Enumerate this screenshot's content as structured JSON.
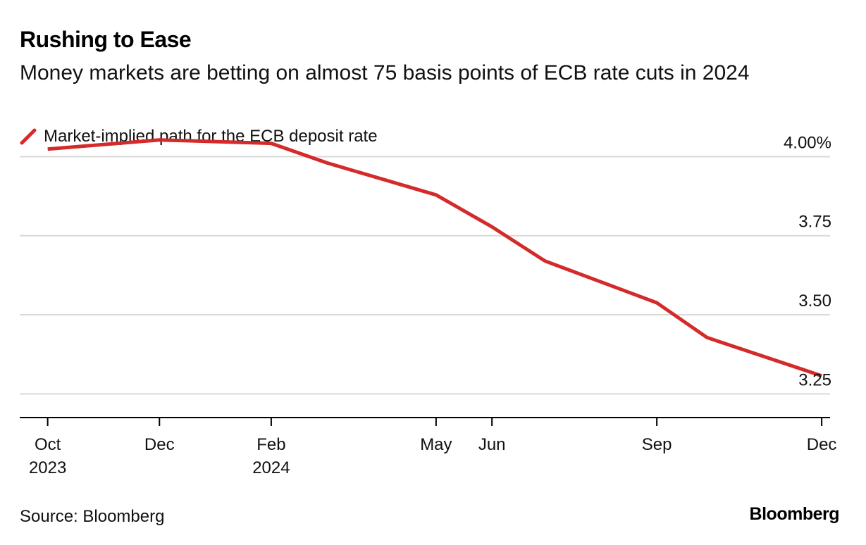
{
  "title": "Rushing to Ease",
  "subtitle": "Money markets are betting on almost 75 basis points of ECB rate cuts in 2024",
  "source": "Source: Bloomberg",
  "brand": "Bloomberg",
  "colors": {
    "line": "#d42a2a",
    "grid": "#d9d9d9",
    "axis": "#000000"
  },
  "chart_data": {
    "type": "line",
    "title": "Rushing to Ease",
    "xlabel": "",
    "ylabel": "",
    "legend": "top-left",
    "ylim": [
      3.175,
      4.05
    ],
    "xlim": [
      0,
      14.5
    ],
    "yticks": [
      {
        "value": 4.0,
        "label": "4.00%"
      },
      {
        "value": 3.75,
        "label": "3.75"
      },
      {
        "value": 3.5,
        "label": "3.50"
      },
      {
        "value": 3.25,
        "label": "3.25"
      }
    ],
    "xticks": [
      {
        "value": 0.5,
        "label": "Oct",
        "sublabel": "2023"
      },
      {
        "value": 2.5,
        "label": "Dec",
        "sublabel": ""
      },
      {
        "value": 4.5,
        "label": "Feb",
        "sublabel": "2024"
      },
      {
        "value": 7.45,
        "label": "May",
        "sublabel": ""
      },
      {
        "value": 8.45,
        "label": "Jun",
        "sublabel": ""
      },
      {
        "value": 11.4,
        "label": "Sep",
        "sublabel": ""
      },
      {
        "value": 14.35,
        "label": "Dec",
        "sublabel": ""
      }
    ],
    "series": [
      {
        "name": "Market-implied path for the ECB deposit rate",
        "x": [
          0.5,
          2.5,
          4.5,
          5.5,
          7.45,
          8.45,
          9.4,
          11.4,
          12.3,
          14.35
        ],
        "y": [
          4.024,
          4.053,
          4.042,
          3.98,
          3.879,
          3.778,
          3.67,
          3.538,
          3.428,
          3.307
        ]
      }
    ]
  }
}
